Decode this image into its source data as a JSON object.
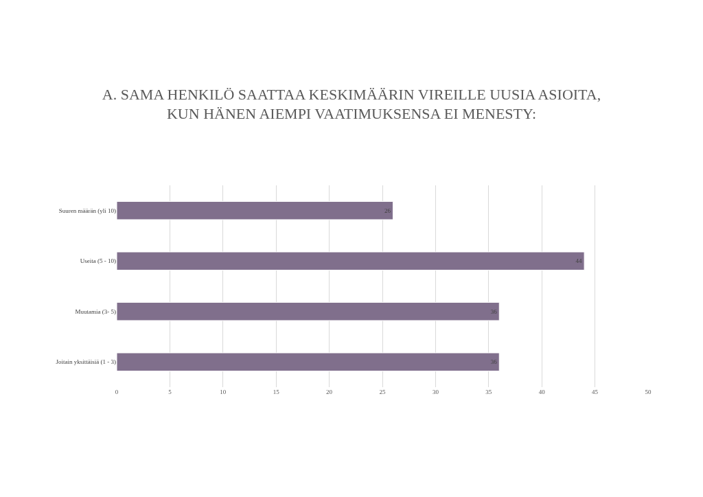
{
  "chart_data": {
    "type": "bar",
    "orientation": "horizontal",
    "title": "A. SAMA HENKILÖ SAATTAA KESKIMÄÄRIN VIREILLE UUSIA ASIOITA, KUN HÄNEN AIEMPI VAATIMUKSENSA EI MENESTY:",
    "categories": [
      "Suuren määrän (yli 10)",
      "Useita (5 - 10)",
      "Muutamia (3- 5)",
      "Joitain yksittäisiä (1 - 3)"
    ],
    "values": [
      26,
      44,
      36,
      36
    ],
    "color": "#806f8c",
    "xlim": [
      0,
      50
    ],
    "xticks": [
      0,
      5,
      10,
      15,
      20,
      25,
      30,
      35,
      40,
      45,
      50
    ],
    "grid": "x",
    "data_labels": true
  }
}
